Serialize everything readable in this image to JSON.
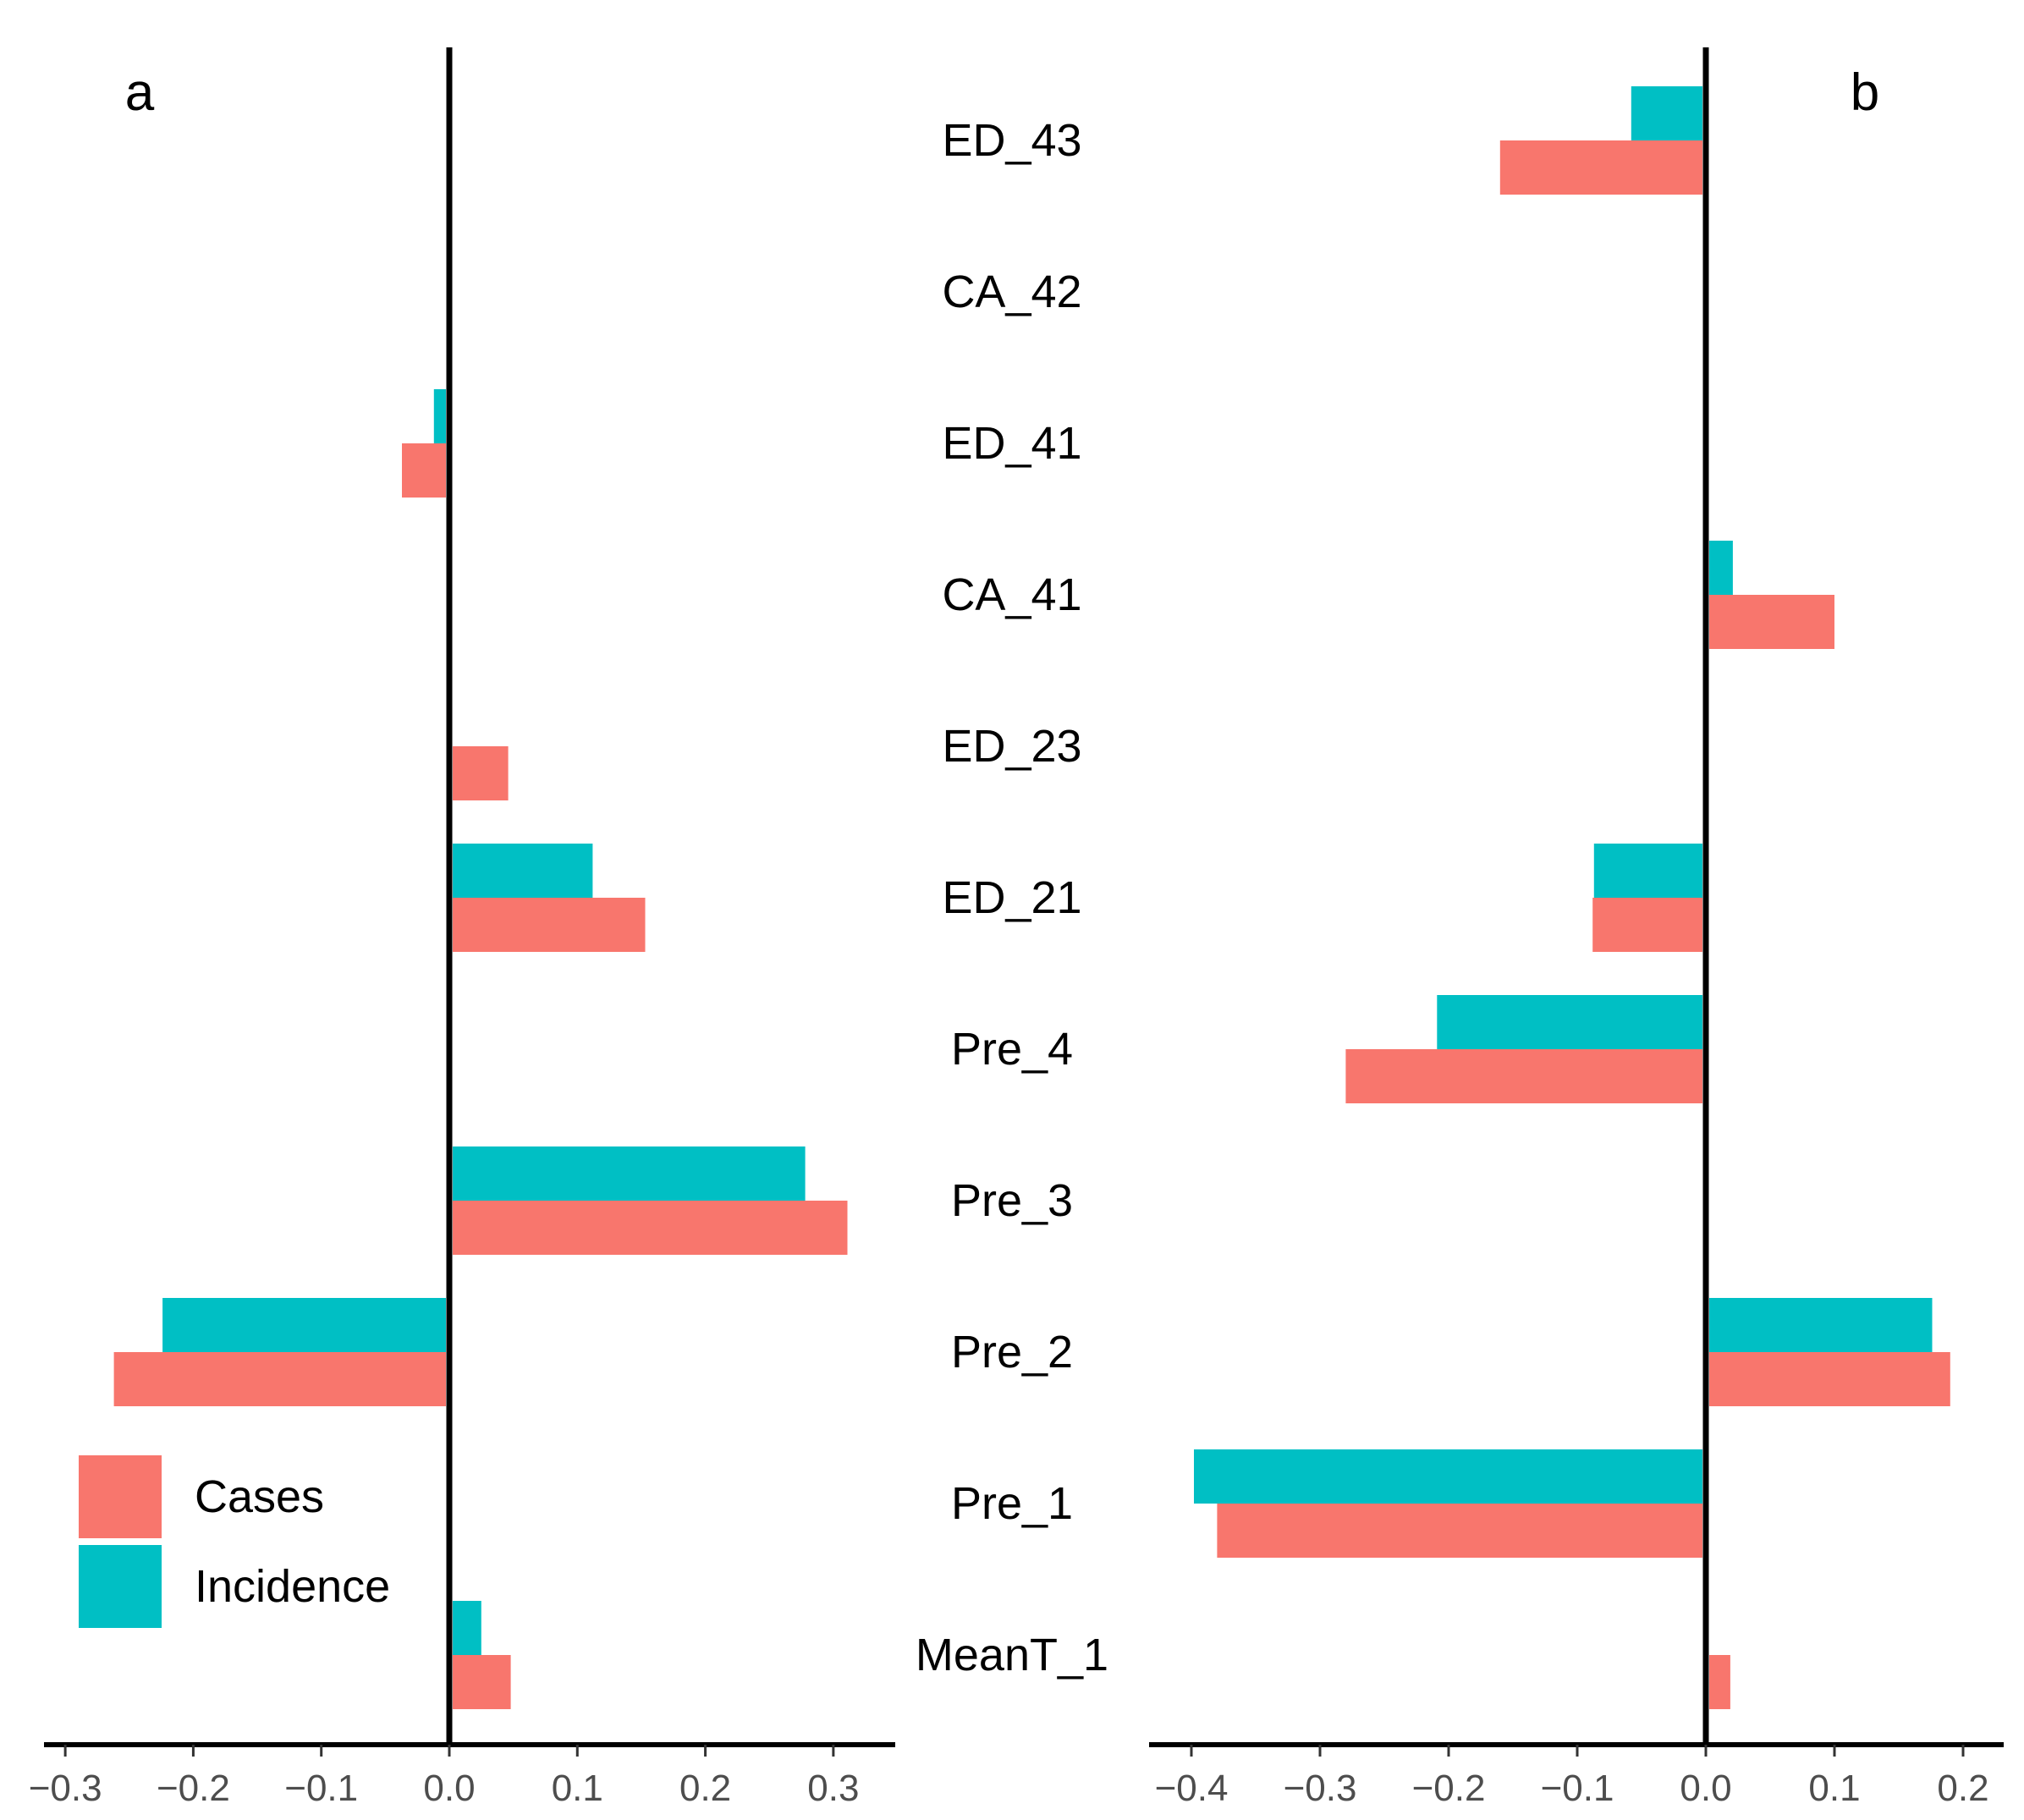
{
  "chart_data": [
    {
      "type": "bar",
      "orientation": "horizontal",
      "panel_label": "a",
      "categories": [
        "ED_43",
        "CA_42",
        "ED_41",
        "CA_41",
        "ED_23",
        "ED_21",
        "Pre_4",
        "Pre_3",
        "Pre_2",
        "Pre_1",
        "MeanT_1"
      ],
      "series": [
        {
          "name": "Incidence",
          "color": "#00BFC4",
          "values": [
            0,
            0,
            -0.012,
            0,
            0,
            0.112,
            0,
            0.278,
            -0.224,
            0,
            0.025
          ]
        },
        {
          "name": "Cases",
          "color": "#F8766D",
          "values": [
            0,
            0,
            -0.037,
            0,
            0.046,
            0.153,
            0,
            0.311,
            -0.262,
            0,
            0.048
          ]
        }
      ],
      "xlim": [
        -0.32,
        0.35
      ],
      "xticks": [
        -0.3,
        -0.2,
        -0.1,
        0.0,
        0.1,
        0.2,
        0.3
      ],
      "xtick_labels": [
        "−0.3",
        "−0.2",
        "−0.1",
        "0.0",
        "0.1",
        "0.2",
        "0.3"
      ],
      "grid": false,
      "legend": {
        "position": "bottom-left",
        "entries": [
          "Cases",
          "Incidence"
        ]
      }
    },
    {
      "type": "bar",
      "orientation": "horizontal",
      "panel_label": "b",
      "categories": [
        "ED_43",
        "CA_42",
        "ED_41",
        "CA_41",
        "ED_23",
        "ED_21",
        "Pre_4",
        "Pre_3",
        "Pre_2",
        "Pre_1",
        "MeanT_1"
      ],
      "series": [
        {
          "name": "Incidence",
          "color": "#00BFC4",
          "values": [
            -0.058,
            0,
            0,
            0.021,
            0,
            -0.087,
            -0.209,
            0,
            0.176,
            -0.398,
            0
          ]
        },
        {
          "name": "Cases",
          "color": "#F8766D",
          "values": [
            -0.16,
            0,
            0,
            0.1,
            0,
            -0.088,
            -0.28,
            0,
            0.19,
            -0.38,
            0.019
          ]
        }
      ],
      "xlim": [
        -0.44,
        0.235
      ],
      "xticks": [
        -0.4,
        -0.3,
        -0.2,
        -0.1,
        0.0,
        0.1,
        0.2
      ],
      "xtick_labels": [
        "−0.4",
        "−0.3",
        "−0.2",
        "−0.1",
        "0.0",
        "0.1",
        "0.2"
      ],
      "grid": false
    }
  ],
  "legend": {
    "items": [
      {
        "label": "Cases",
        "color": "#F8766D"
      },
      {
        "label": "Incidence",
        "color": "#00BFC4"
      }
    ]
  }
}
